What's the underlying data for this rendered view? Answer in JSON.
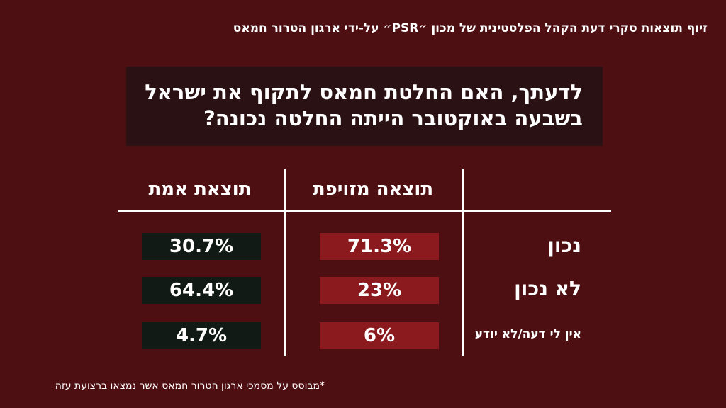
{
  "header": {
    "title": "זיוף תוצאות סקרי דעת הקהל הפלסטינית של מכון ״PSR״ על-ידי ארגון הטרור חמאס"
  },
  "question": {
    "line1": "לדעתך, האם החלטת חמאס לתקוף את ישראל",
    "line2": "בשבעה באוקטובר הייתה החלטה נכונה?"
  },
  "table": {
    "headers": {
      "fake": "תוצאה מזויפת",
      "real": "תוצאת אמת"
    },
    "rows": [
      {
        "label": "נכון",
        "fake": "71.3%",
        "real": "30.7%"
      },
      {
        "label": "לא נכון",
        "fake": "23%",
        "real": "64.4%"
      },
      {
        "label": "אין לי דעה/לא יודע",
        "fake": "6%",
        "real": "4.7%"
      }
    ]
  },
  "footnote": "*מבוסס על מסמכי ארגון הטרור חמאס אשר נמצאו ברצועת עזה",
  "colors": {
    "background": "#4e0f12",
    "fake_cell": "#8a1a1e",
    "real_cell": "#111a14",
    "question_box": "#2a1113",
    "text": "#ffffff"
  }
}
